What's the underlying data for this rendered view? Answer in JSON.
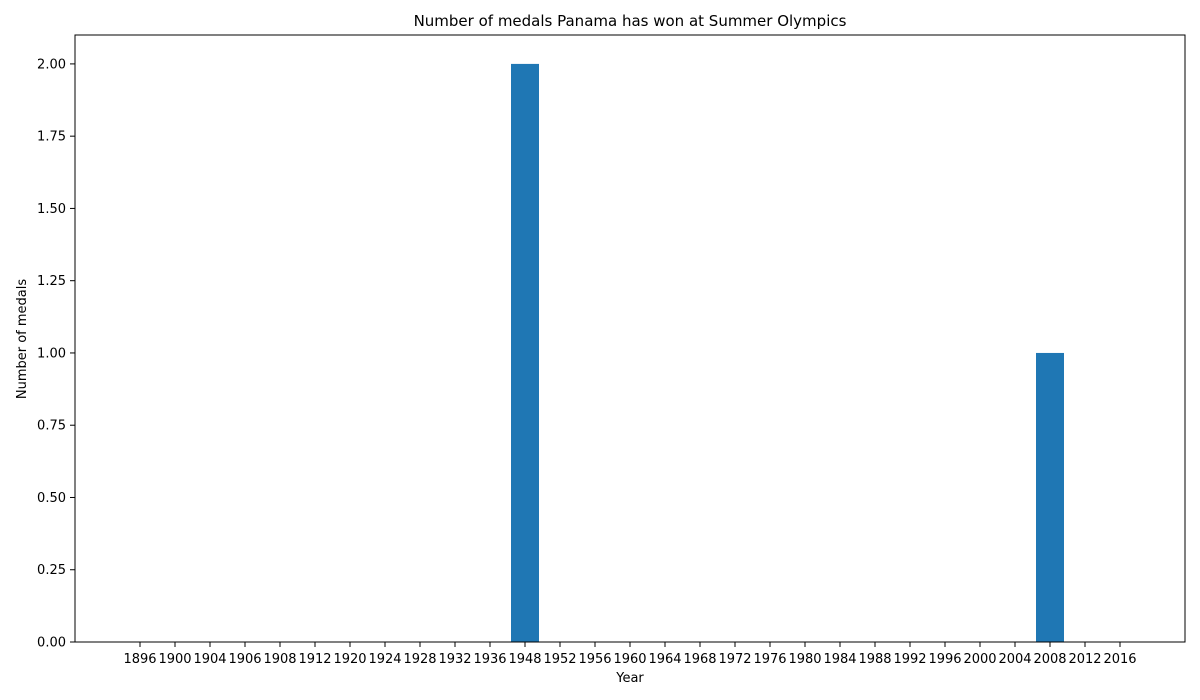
{
  "chart_data": {
    "type": "bar",
    "title": "Number of medals Panama has won at Summer Olympics",
    "xlabel": "Year",
    "ylabel": "Number of medals",
    "categories": [
      "1896",
      "1900",
      "1904",
      "1906",
      "1908",
      "1912",
      "1920",
      "1924",
      "1928",
      "1932",
      "1936",
      "1948",
      "1952",
      "1956",
      "1960",
      "1964",
      "1968",
      "1972",
      "1976",
      "1980",
      "1984",
      "1988",
      "1992",
      "1996",
      "2000",
      "2004",
      "2008",
      "2012",
      "2016"
    ],
    "values": [
      0,
      0,
      0,
      0,
      0,
      0,
      0,
      0,
      0,
      0,
      0,
      2,
      0,
      0,
      0,
      0,
      0,
      0,
      0,
      0,
      0,
      0,
      0,
      0,
      0,
      0,
      1,
      0,
      0
    ],
    "yticks": [
      "0.00",
      "0.25",
      "0.50",
      "0.75",
      "1.00",
      "1.25",
      "1.50",
      "1.75",
      "2.00"
    ],
    "ylim": [
      0,
      2.1
    ],
    "bar_color": "#1f77b4",
    "grid": false,
    "legend": "none"
  }
}
